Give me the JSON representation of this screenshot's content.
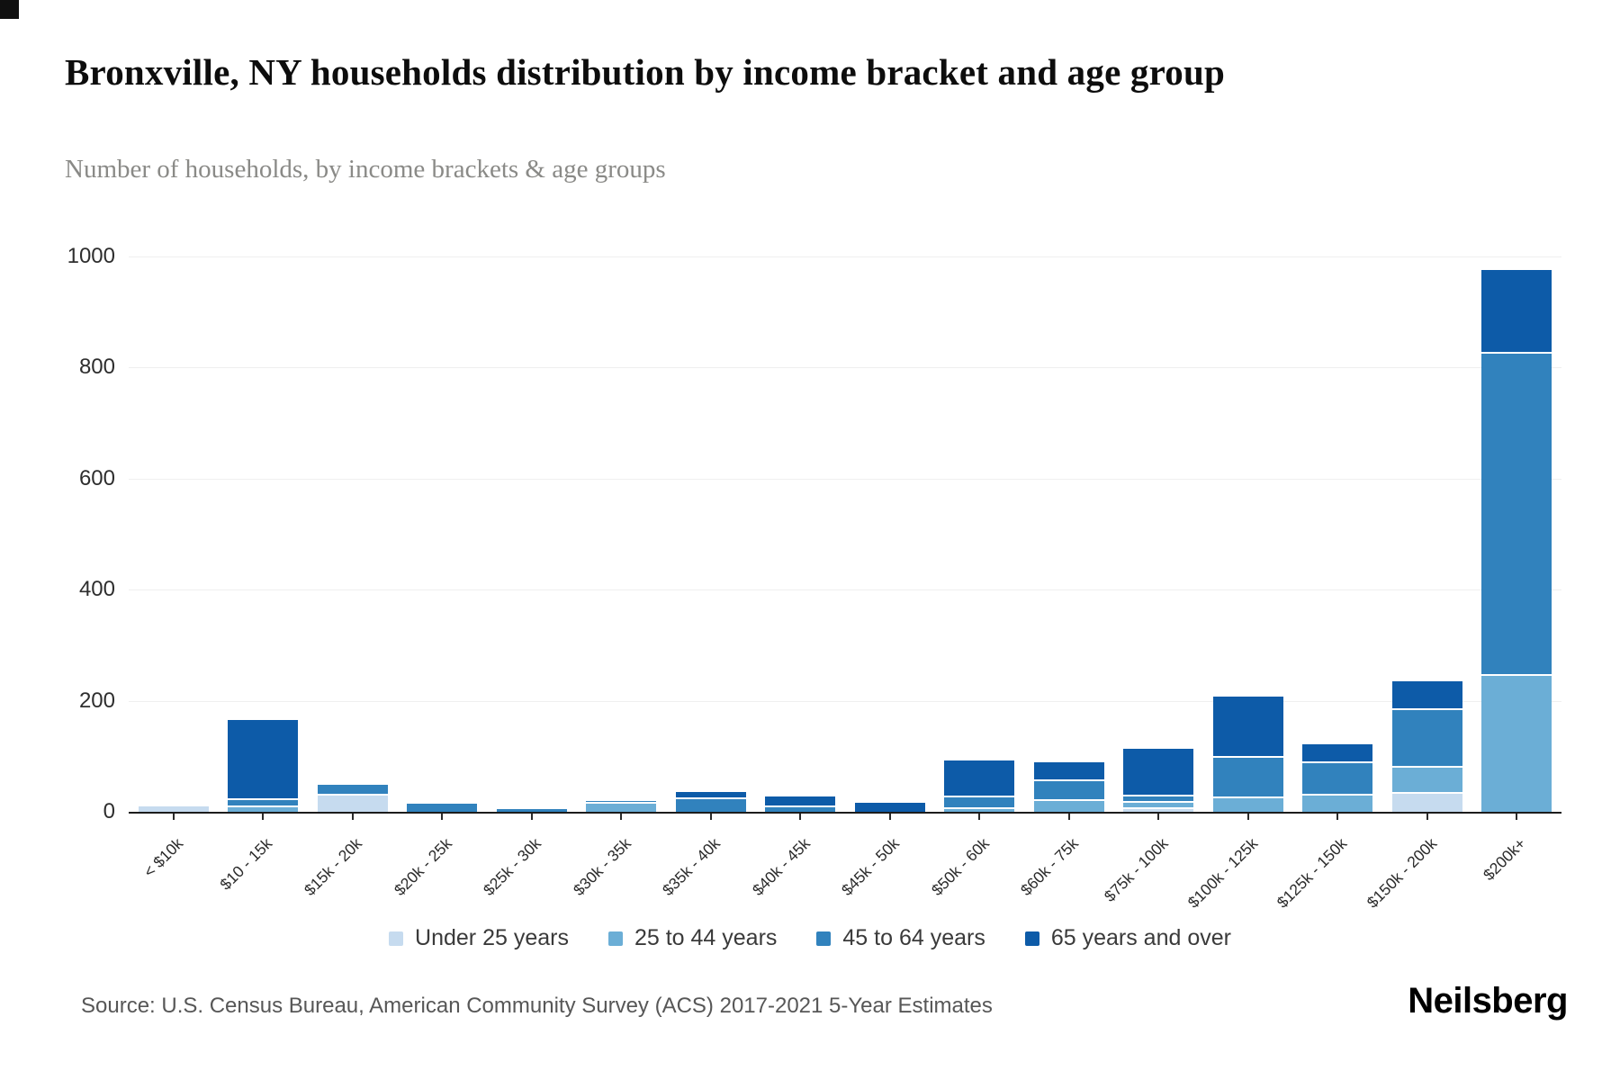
{
  "page": {
    "title": "Bronxville, NY households distribution by income bracket and age group",
    "subtitle": "Number of households, by income brackets & age groups",
    "source": "Source: U.S. Census Bureau, American Community Survey (ACS) 2017-2021 5-Year Estimates",
    "brand": "Neilsberg"
  },
  "chart_data": {
    "type": "bar",
    "stacked": true,
    "title": "Bronxville, NY households distribution by income bracket and age group",
    "subtitle": "Number of households, by income brackets & age groups",
    "xlabel": "",
    "ylabel": "Number of households",
    "ylim": [
      0,
      1000
    ],
    "yticks": [
      0,
      200,
      400,
      600,
      800,
      1000
    ],
    "grid": true,
    "legend_position": "bottom",
    "categories": [
      "< $10k",
      "$10 - 15k",
      "$15k - 20k",
      "$20k - 25k",
      "$25k - 30k",
      "$30k - 35k",
      "$35k - 40k",
      "$40k - 45k",
      "$45k - 50k",
      "$50k - 60k",
      "$60k - 75k",
      "$75k - 100k",
      "$100k - 125k",
      "$125k - 150k",
      "$150k - 200k",
      "$200k+"
    ],
    "series": [
      {
        "name": "Under 25 years",
        "color": "#c6dbef",
        "values": [
          10,
          0,
          30,
          0,
          0,
          0,
          0,
          0,
          0,
          0,
          0,
          5,
          0,
          0,
          33,
          0
        ]
      },
      {
        "name": "25 to 44 years",
        "color": "#6baed6",
        "values": [
          0,
          8,
          0,
          0,
          0,
          14,
          0,
          0,
          0,
          5,
          20,
          11,
          25,
          30,
          46,
          245
        ]
      },
      {
        "name": "45 to 64 years",
        "color": "#3182bd",
        "values": [
          0,
          13,
          18,
          14,
          5,
          6,
          22,
          8,
          0,
          21,
          35,
          12,
          72,
          58,
          104,
          580
        ]
      },
      {
        "name": "65 years and over",
        "color": "#0d5ba8",
        "values": [
          0,
          145,
          0,
          0,
          0,
          0,
          14,
          19,
          17,
          67,
          34,
          85,
          110,
          34,
          52,
          150
        ]
      }
    ]
  }
}
